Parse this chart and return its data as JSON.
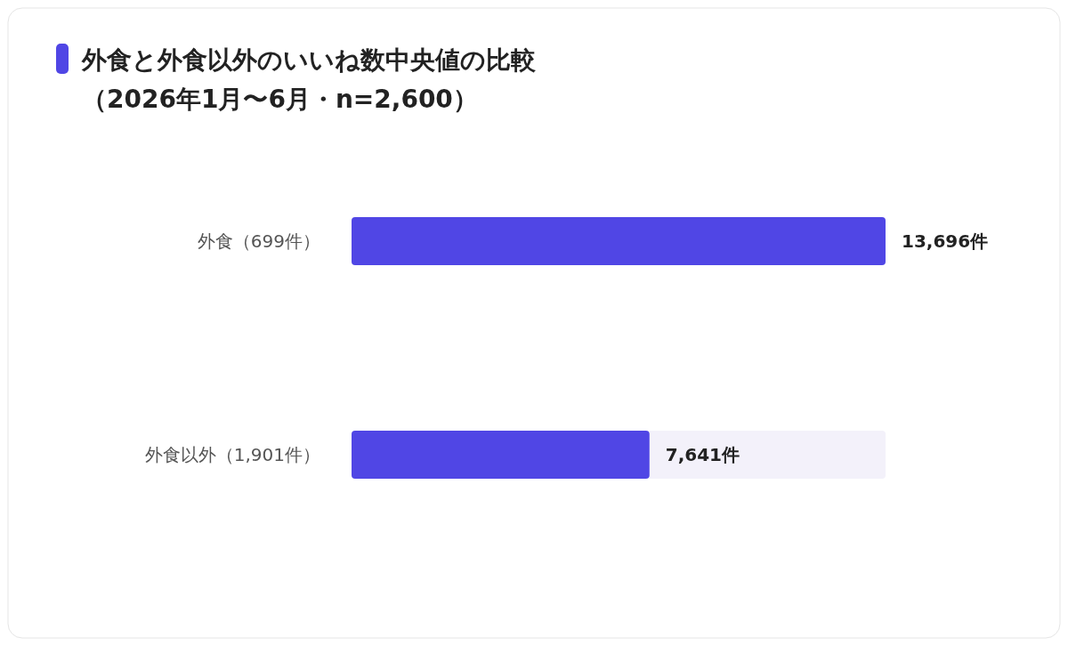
{
  "chart_data": {
    "type": "bar",
    "orientation": "horizontal",
    "title": "外食と外食以外のいいね数中央値の比較",
    "subtitle": "（2026年1月〜6月・n=2,600）",
    "categories": [
      "外食（699件）",
      "外食以外（1,901件）"
    ],
    "values": [
      13696,
      7641
    ],
    "value_labels": [
      "13,696件",
      "7,641件"
    ],
    "color": "#5046e5"
  }
}
